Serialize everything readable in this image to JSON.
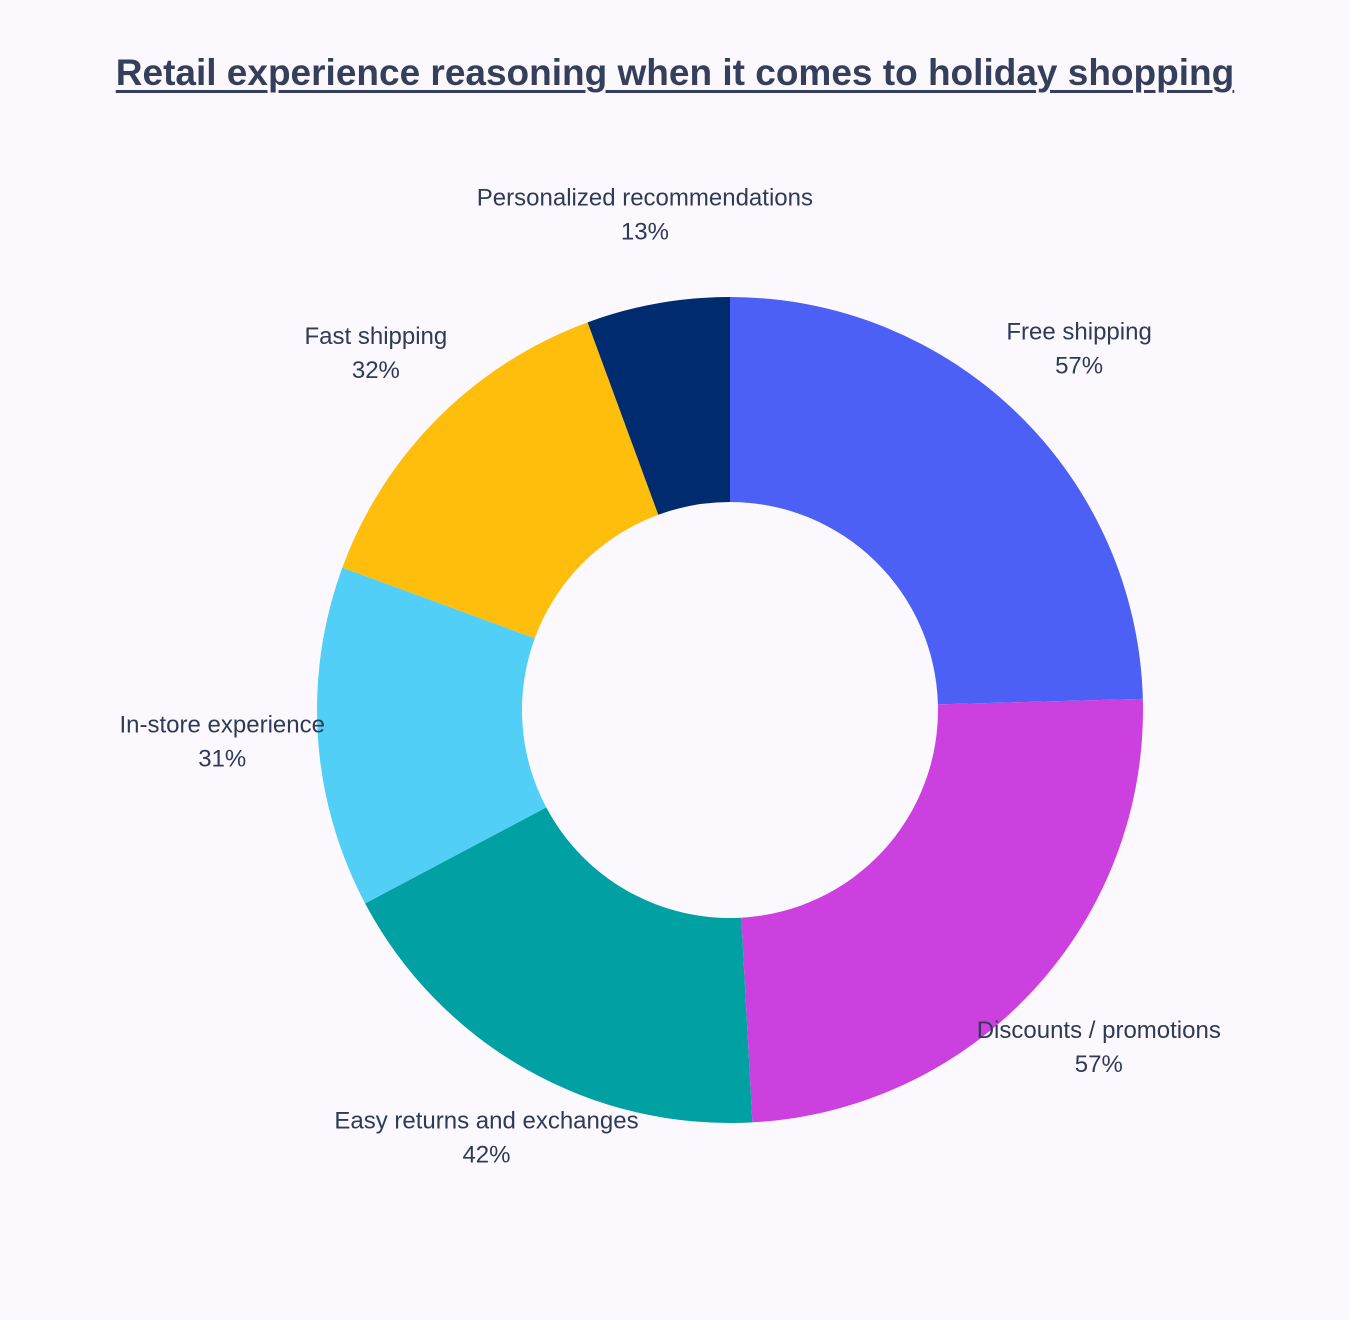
{
  "chart_data": {
    "type": "pie",
    "variant": "donut",
    "title": "Retail experience reasoning when it comes to holiday shopping",
    "legend": "none",
    "labels_shown": "outside",
    "categories": [
      "Free shipping",
      "Discounts / promotions",
      "Easy returns and exchanges",
      "In-store experience",
      "Fast shipping",
      "Personalized recommendations"
    ],
    "values": [
      57,
      57,
      42,
      31,
      32,
      13
    ],
    "value_labels": [
      "57%",
      "57%",
      "42%",
      "31%",
      "32%",
      "13%"
    ],
    "colors": [
      "#4c60f5",
      "#cb40de",
      "#00a0a3",
      "#51cff6",
      "#ffbe0b",
      "#002b6e"
    ]
  }
}
